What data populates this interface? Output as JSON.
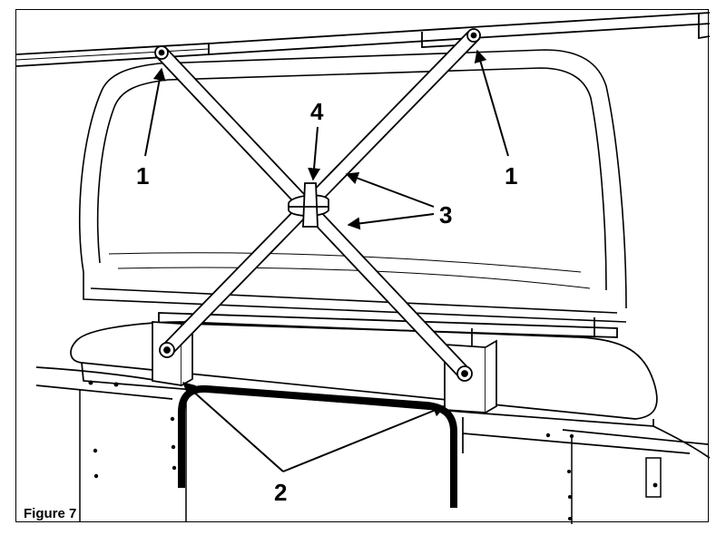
{
  "figure": {
    "caption": "Figure 7",
    "callouts": {
      "label_1_left": "1",
      "label_1_right": "1",
      "label_2": "2",
      "label_3": "3",
      "label_4": "4"
    }
  }
}
